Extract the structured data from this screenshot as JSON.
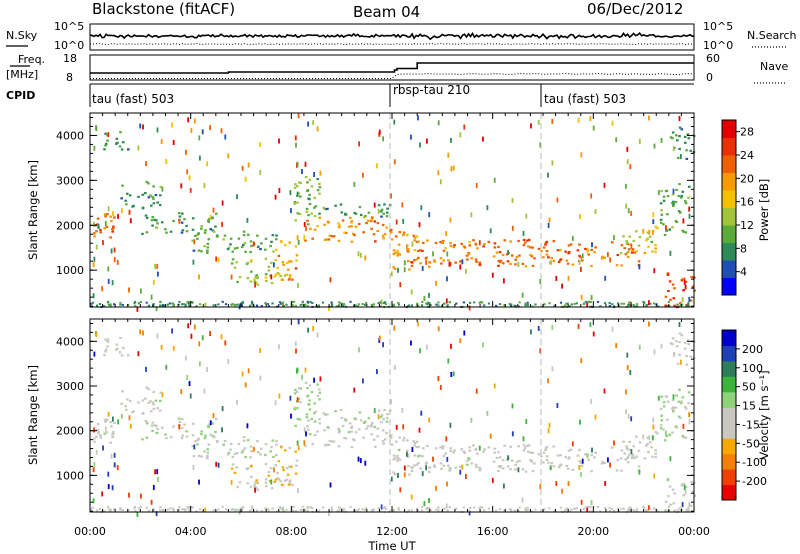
{
  "header": {
    "station": "Blackstone (fitACF)",
    "beam": "Beam 04",
    "date": "06/Dec/2012"
  },
  "top_panels": {
    "nsky_label": "N.Sky",
    "nsky_ticks": [
      "10^5",
      "10^0"
    ],
    "nsearch_label": "N.Search",
    "nsearch_ticks": [
      "10^5",
      "10^0"
    ],
    "freq_label_1": "Freq.",
    "freq_label_2": "[MHz]",
    "freq_ticks": [
      "18",
      "8"
    ],
    "nave_label": "Nave",
    "nave_ticks": [
      "60",
      "0"
    ],
    "cpid_label": "CPID",
    "cpid_segments": [
      {
        "label": "tau (fast) 503",
        "start_hour": 0
      },
      {
        "label": "rbsp-tau 210",
        "start_hour": 12
      },
      {
        "label": "tau (fast) 503",
        "start_hour": 18
      }
    ]
  },
  "chart_data": [
    {
      "type": "heatmap",
      "title": "",
      "xlabel": "Time UT",
      "ylabel": "Slant Range [km]",
      "x_ticks": [
        "00:00",
        "04:00",
        "08:00",
        "12:00",
        "16:00",
        "20:00",
        "00:00"
      ],
      "xlim_hours": [
        0,
        24
      ],
      "ylim": [
        180,
        4500
      ],
      "y_ticks": [
        1000,
        2000,
        3000,
        4000
      ],
      "colorbar": {
        "label": "Power [dB]",
        "ticks": [
          "28",
          "24",
          "20",
          "16",
          "12",
          "8",
          "4"
        ],
        "range": [
          0,
          30
        ],
        "colors": [
          "#0000ff",
          "#1f4fb4",
          "#2e8b57",
          "#5aab3a",
          "#a0c43a",
          "#f5c000",
          "#f59a00",
          "#f06000",
          "#e83000",
          "#e00000"
        ]
      },
      "echo_regions": [
        {
          "t_start": 0.0,
          "t_end": 1.3,
          "r_min": 1700,
          "r_max": 2300,
          "power": 22,
          "velocity": 0
        },
        {
          "t_start": 0.3,
          "t_end": 1.5,
          "r_min": 3700,
          "r_max": 4100,
          "power": 8,
          "velocity": 0
        },
        {
          "t_start": 1.2,
          "t_end": 2.8,
          "r_min": 2400,
          "r_max": 3000,
          "power": 8,
          "velocity": 0
        },
        {
          "t_start": 2.0,
          "t_end": 5.0,
          "r_min": 1800,
          "r_max": 2300,
          "power": 9,
          "velocity": 20
        },
        {
          "t_start": 4.0,
          "t_end": 7.5,
          "r_min": 1400,
          "r_max": 1900,
          "power": 10,
          "velocity": 10
        },
        {
          "t_start": 5.5,
          "t_end": 7.8,
          "r_min": 700,
          "r_max": 1300,
          "power": 14,
          "velocity": -60
        },
        {
          "t_start": 7.3,
          "t_end": 8.2,
          "r_min": 800,
          "r_max": 1700,
          "power": 19,
          "velocity": -70
        },
        {
          "t_start": 8.0,
          "t_end": 9.2,
          "r_min": 2000,
          "r_max": 3100,
          "power": 12,
          "velocity": 30
        },
        {
          "t_start": 8.5,
          "t_end": 12.0,
          "r_min": 1650,
          "r_max": 2200,
          "power": 20,
          "velocity": 5
        },
        {
          "t_start": 9.0,
          "t_end": 12.0,
          "r_min": 2200,
          "r_max": 2500,
          "power": 8,
          "velocity": 20
        },
        {
          "t_start": 12.0,
          "t_end": 13.0,
          "r_min": 1000,
          "r_max": 1900,
          "power": 20,
          "velocity": 0
        },
        {
          "t_start": 12.5,
          "t_end": 21.8,
          "r_min": 1100,
          "r_max": 1700,
          "power": 22,
          "velocity": 0
        },
        {
          "t_start": 21.0,
          "t_end": 22.5,
          "r_min": 1400,
          "r_max": 2000,
          "power": 16,
          "velocity": 0
        },
        {
          "t_start": 22.6,
          "t_end": 23.8,
          "r_min": 1800,
          "r_max": 3000,
          "power": 10,
          "velocity": 20
        },
        {
          "t_start": 22.8,
          "t_end": 24.0,
          "r_min": 200,
          "r_max": 1000,
          "power": 24,
          "velocity": 5
        },
        {
          "t_start": 23.0,
          "t_end": 24.0,
          "r_min": 3500,
          "r_max": 4200,
          "power": 8,
          "velocity": 0
        }
      ]
    },
    {
      "type": "heatmap",
      "title": "",
      "xlabel": "Time UT",
      "ylabel": "Slant Range [km]",
      "x_ticks": [
        "00:00",
        "04:00",
        "08:00",
        "12:00",
        "16:00",
        "20:00",
        "00:00"
      ],
      "xlim_hours": [
        0,
        24
      ],
      "ylim": [
        180,
        4500
      ],
      "y_ticks": [
        1000,
        2000,
        3000,
        4000
      ],
      "colorbar": {
        "label": "Velocity [m s⁻¹]",
        "ticks": [
          "200",
          "100",
          "50",
          "15",
          "-15",
          "-50",
          "-100",
          "-200"
        ],
        "range": [
          -250,
          250
        ],
        "colors": [
          "#e80000",
          "#f04000",
          "#f58000",
          "#f5a800",
          "#c8c8c0",
          "#c8c8c0",
          "#8ed27a",
          "#3cb43c",
          "#2e7d5a",
          "#1f3fb4",
          "#0000c8"
        ]
      }
    }
  ]
}
